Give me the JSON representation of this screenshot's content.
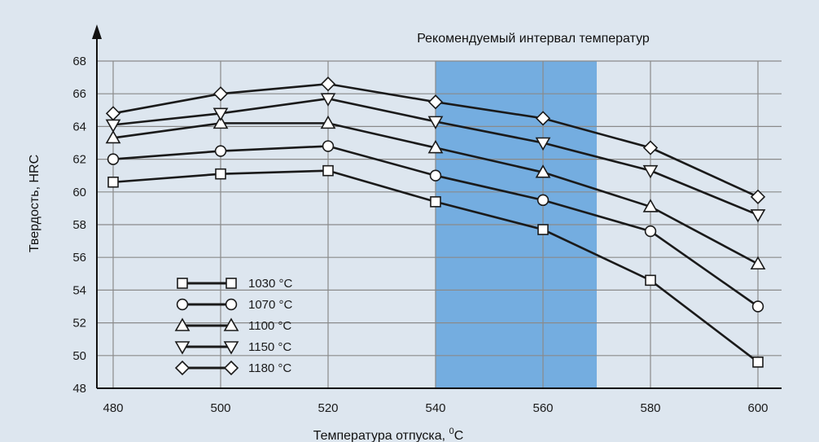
{
  "chart_data": {
    "type": "line",
    "xlabel": "Температура отпуска, ",
    "xlabel_sup": "0",
    "xlabel_unit": "C",
    "ylabel": "Твердость, HRC",
    "band_label": "Рекомендуемый интервал температур",
    "band_range": [
      540,
      570
    ],
    "band_color": "#74ade0",
    "background": "#dde6ef",
    "grid": true,
    "xlim": [
      476,
      610
    ],
    "ylim": [
      48,
      68
    ],
    "x_ticks": [
      480,
      500,
      520,
      540,
      560,
      580,
      600
    ],
    "y_ticks": [
      48,
      50,
      52,
      54,
      56,
      58,
      60,
      62,
      64,
      66,
      68
    ],
    "legend_position": "bottom-left",
    "series": [
      {
        "name": "1030 °C",
        "marker": "square",
        "x": [
          480,
          500,
          520,
          540,
          560,
          580,
          600
        ],
        "values": [
          60.6,
          61.1,
          61.3,
          59.4,
          57.7,
          54.6,
          49.6
        ]
      },
      {
        "name": "1070 °C",
        "marker": "circle",
        "x": [
          480,
          500,
          520,
          540,
          560,
          580,
          600
        ],
        "values": [
          62.0,
          62.5,
          62.8,
          61.0,
          59.5,
          57.6,
          53.0
        ]
      },
      {
        "name": "1100 °C",
        "marker": "triangle-up",
        "x": [
          480,
          500,
          520,
          540,
          560,
          580,
          600
        ],
        "values": [
          63.3,
          64.2,
          64.2,
          62.7,
          61.2,
          59.1,
          55.6
        ]
      },
      {
        "name": "1150 °C",
        "marker": "triangle-down",
        "x": [
          480,
          500,
          520,
          540,
          560,
          580,
          600
        ],
        "values": [
          64.1,
          64.8,
          65.7,
          64.3,
          63.0,
          61.3,
          58.6
        ]
      },
      {
        "name": "1180 °C",
        "marker": "diamond",
        "x": [
          480,
          500,
          520,
          540,
          560,
          580,
          600
        ],
        "values": [
          64.8,
          66.0,
          66.6,
          65.5,
          64.5,
          62.7,
          59.7
        ]
      }
    ]
  }
}
